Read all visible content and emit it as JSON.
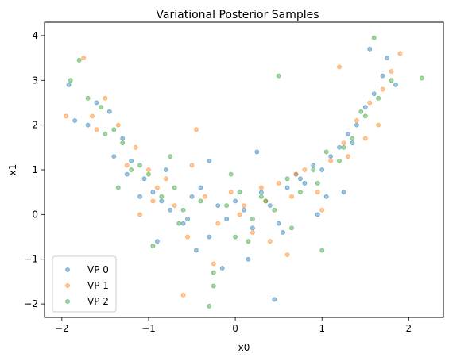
{
  "chart_data": {
    "type": "scatter",
    "title": "Variational Posterior Samples",
    "xlabel": "x0",
    "ylabel": "x1",
    "xlim": [
      -2.2,
      2.4
    ],
    "ylim": [
      -2.3,
      4.3
    ],
    "xticks": [
      -2,
      -1,
      0,
      1,
      2
    ],
    "yticks": [
      -2,
      -1,
      0,
      1,
      2,
      3,
      4
    ],
    "grid": false,
    "legend_position": "lower-left",
    "series_colors": [
      "#1f77b4",
      "#ff7f0e",
      "#2ca02c"
    ],
    "series": [
      {
        "name": "VP 0",
        "x": [
          -1.92,
          -1.85,
          -1.6,
          -1.45,
          -1.3,
          -1.2,
          -1.05,
          -0.95,
          -0.85,
          -0.75,
          -0.6,
          -0.5,
          -0.4,
          -0.3,
          -0.2,
          -0.1,
          0.0,
          0.1,
          0.2,
          0.3,
          0.4,
          0.5,
          0.6,
          0.7,
          0.8,
          0.9,
          1.0,
          1.1,
          1.2,
          1.3,
          1.4,
          1.5,
          1.6,
          1.7,
          1.75,
          1.85,
          -1.7,
          -1.4,
          -1.1,
          -0.8,
          -0.45,
          -0.15,
          0.15,
          0.45,
          0.75,
          1.05,
          1.35,
          1.55,
          -0.3,
          0.25,
          -0.9,
          0.95,
          -1.25,
          1.25,
          0.55,
          -0.55
        ],
        "y": [
          2.9,
          2.1,
          2.5,
          2.3,
          1.7,
          1.2,
          0.8,
          0.5,
          0.3,
          0.1,
          -0.2,
          0.4,
          0.6,
          -0.5,
          0.2,
          -0.1,
          0.3,
          0.1,
          -0.3,
          0.5,
          0.2,
          -0.2,
          0.6,
          0.9,
          0.7,
          1.1,
          1.0,
          1.3,
          1.5,
          1.8,
          2.0,
          2.4,
          2.7,
          3.1,
          3.5,
          2.9,
          2.0,
          1.3,
          0.4,
          1.0,
          -0.8,
          -1.2,
          -1.0,
          -1.9,
          0.8,
          0.4,
          1.6,
          3.7,
          1.2,
          1.4,
          -0.6,
          0.0,
          0.9,
          0.5,
          -0.4,
          -0.1
        ]
      },
      {
        "name": "VP 1",
        "x": [
          -1.95,
          -1.75,
          -1.6,
          -1.5,
          -1.35,
          -1.15,
          -1.0,
          -0.9,
          -0.7,
          -0.55,
          -0.45,
          -0.35,
          -0.2,
          -0.05,
          0.05,
          0.2,
          0.35,
          0.5,
          0.65,
          0.8,
          0.95,
          1.1,
          1.25,
          1.4,
          1.55,
          1.7,
          1.8,
          1.9,
          -1.65,
          -1.25,
          -0.95,
          -0.6,
          -0.25,
          0.1,
          0.4,
          0.7,
          1.0,
          1.3,
          1.65,
          -0.5,
          0.3,
          1.2,
          -1.1,
          0.6,
          1.5,
          -0.8
        ],
        "y": [
          2.2,
          3.5,
          1.9,
          2.6,
          2.0,
          1.5,
          1.0,
          0.6,
          0.2,
          -0.5,
          1.9,
          0.4,
          -0.2,
          0.5,
          0.0,
          -0.4,
          0.3,
          0.7,
          0.4,
          1.0,
          0.5,
          1.2,
          1.6,
          2.1,
          2.5,
          2.8,
          3.2,
          3.6,
          2.2,
          1.1,
          0.3,
          -1.8,
          -1.1,
          0.2,
          -0.6,
          0.9,
          0.1,
          1.3,
          2.0,
          1.1,
          0.6,
          3.3,
          0.0,
          -0.9,
          1.7,
          0.8
        ]
      },
      {
        "name": "VP 2",
        "x": [
          -1.8,
          -1.7,
          -1.55,
          -1.4,
          -1.3,
          -1.1,
          -1.0,
          -0.85,
          -0.7,
          -0.6,
          -0.4,
          -0.25,
          -0.1,
          0.05,
          0.2,
          0.3,
          0.45,
          0.6,
          0.75,
          0.9,
          1.05,
          1.2,
          1.35,
          1.5,
          1.65,
          1.8,
          2.15,
          -1.9,
          -1.5,
          -1.2,
          -0.95,
          -0.65,
          -0.3,
          0.0,
          0.35,
          0.65,
          0.95,
          1.25,
          1.6,
          -0.25,
          0.5,
          1.0,
          -1.35,
          -0.75,
          0.15,
          1.45,
          -0.05
        ],
        "y": [
          3.45,
          2.6,
          2.4,
          1.9,
          1.6,
          1.1,
          0.9,
          0.4,
          0.6,
          0.1,
          0.3,
          -1.3,
          0.2,
          0.5,
          -0.1,
          0.4,
          0.1,
          0.8,
          0.5,
          1.0,
          1.4,
          1.2,
          1.7,
          2.2,
          2.6,
          3.0,
          3.05,
          3.0,
          1.8,
          1.0,
          -0.7,
          -0.2,
          -2.05,
          -0.5,
          0.3,
          -0.3,
          0.7,
          1.5,
          3.95,
          -1.6,
          3.1,
          -0.8,
          0.6,
          1.3,
          -0.6,
          2.3,
          0.9
        ]
      }
    ]
  }
}
